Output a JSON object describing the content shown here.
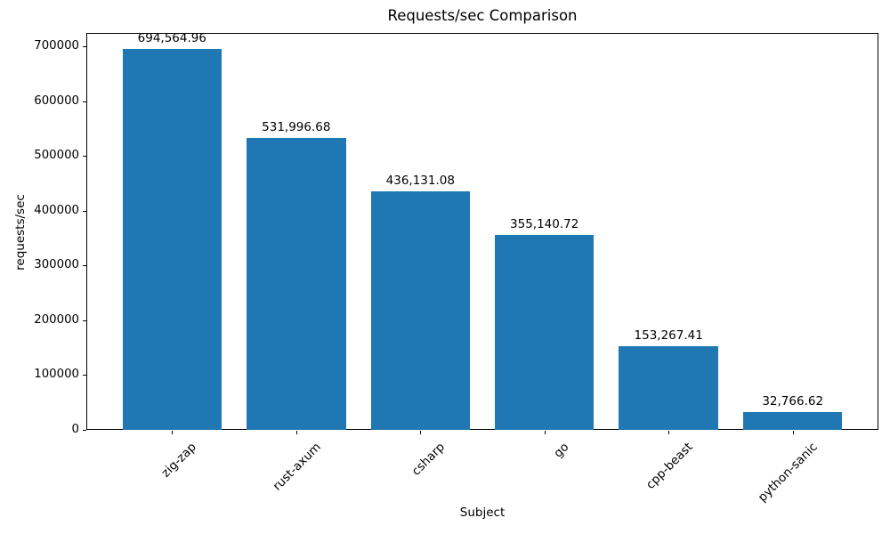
{
  "chart_data": {
    "type": "bar",
    "title": "Requests/sec Comparison",
    "xlabel": "Subject",
    "ylabel": "requests/sec",
    "categories": [
      "zig-zap",
      "rust-axum",
      "csharp",
      "go",
      "cpp-beast",
      "python-sanic"
    ],
    "values": [
      694564.96,
      531996.68,
      436131.08,
      355140.72,
      153267.41,
      32766.62
    ],
    "value_labels": [
      "694,564.96",
      "531,996.68",
      "436,131.08",
      "355,140.72",
      "153,267.41",
      "32,766.62"
    ],
    "ytick_labels": [
      "0",
      "100000",
      "200000",
      "300000",
      "400000",
      "500000",
      "600000",
      "700000"
    ],
    "yticks": [
      0,
      100000,
      200000,
      300000,
      400000,
      500000,
      600000,
      700000
    ],
    "ylim": [
      0,
      724360
    ],
    "bar_color": "#1f77b4",
    "grid": false,
    "legend_position": "none",
    "x_tick_rotation_deg": 45
  }
}
